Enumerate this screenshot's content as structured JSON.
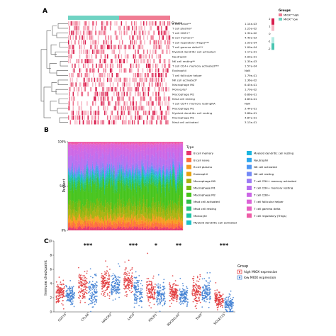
{
  "figure": {
    "panels": [
      {
        "label": "A"
      },
      {
        "label": "B"
      },
      {
        "label": "C"
      }
    ]
  },
  "chart_data": [
    {
      "type": "heatmap",
      "panel": "A",
      "groups_header": "Groups",
      "legend": {
        "title": "Groups",
        "entries": [
          {
            "name": "MIOX^high",
            "color": "#f07c93"
          },
          {
            "name": "MIOX^low",
            "color": "#6fd3c3"
          }
        ],
        "scale_ticks": [
          "2",
          "1",
          "0",
          "-1",
          "-2"
        ],
        "scale_colors": [
          "#d81e4e",
          "#f7b7c5",
          "#ffffff",
          "#b2ebe2",
          "#49c5b1"
        ]
      },
      "annotation_split": 0.5,
      "rows": [
        {
          "name": "B cell naive**",
          "p": "1.14e-03"
        },
        {
          "name": "T cell plasma*",
          "p": "1.25e-02"
        },
        {
          "name": "T cell CD8+*",
          "p": "1.32e-02"
        },
        {
          "name": "B cell memory*",
          "p": "4.45e-03"
        },
        {
          "name": "T cell regulatory (Tregs)***",
          "p": "1.55e-04"
        },
        {
          "name": "T cell gamma delta***",
          "p": "1.00e-04"
        },
        {
          "name": "Myeloid dendritic cell activated",
          "p": "1.17e-01"
        },
        {
          "name": "Neutrophil",
          "p": "3.09e-01"
        },
        {
          "name": "NK cell resting**",
          "p": "1.35e-03"
        },
        {
          "name": "T cell CD4+ memory activated***",
          "p": "1.57e-04"
        },
        {
          "name": "Eosinophil",
          "p": "NaN"
        },
        {
          "name": "T cell follicular helper",
          "p": "1.79e-01"
        },
        {
          "name": "NK cell activated*",
          "p": "1.36e-02"
        },
        {
          "name": "Macrophage M0",
          "p": "6.45e-01"
        },
        {
          "name": "Monocyte*",
          "p": "1.79e-02"
        },
        {
          "name": "Macrophage M2",
          "p": "6.86e-01"
        },
        {
          "name": "Mast cell resting",
          "p": "4.65e-01"
        },
        {
          "name": "T cell CD4+ memory restingNA",
          "p": "NaN"
        },
        {
          "name": "Macrophage M1",
          "p": "3.44e-01"
        },
        {
          "name": "Myeloid dendritic cell resting",
          "p": "3.88e-01"
        },
        {
          "name": "Macrophage M1",
          "p": "4.87e-01"
        },
        {
          "name": "Mast cell activated",
          "p": "3.13e-01"
        }
      ]
    },
    {
      "type": "bar",
      "stacked": true,
      "panel": "B",
      "ylabel": "Percent",
      "yticks": [
        "100%",
        "50%",
        "0%"
      ],
      "legend_title": "Type",
      "samples": 200,
      "series": [
        {
          "name": "B cell memory",
          "color": "#e6366e",
          "mean": 0.03
        },
        {
          "name": "B cell naive",
          "color": "#ff6b3d",
          "mean": 0.05
        },
        {
          "name": "B cell plasma",
          "color": "#f79a1e",
          "mean": 0.05
        },
        {
          "name": "Eosinophil",
          "color": "#e6a10a",
          "mean": 0.01
        },
        {
          "name": "Macrophage M0",
          "color": "#a8b20f",
          "mean": 0.08
        },
        {
          "name": "Macrophage M1",
          "color": "#79b80f",
          "mean": 0.08
        },
        {
          "name": "Macrophage M2",
          "color": "#45c41b",
          "mean": 0.2
        },
        {
          "name": "Mast cell activated",
          "color": "#2fbf4b",
          "mean": 0.02
        },
        {
          "name": "Mast cell resting",
          "color": "#23c27d",
          "mean": 0.05
        },
        {
          "name": "Monocyte",
          "color": "#19c3a3",
          "mean": 0.03
        },
        {
          "name": "Myeloid dendritic cell activated",
          "color": "#1ec1c6",
          "mean": 0.02
        },
        {
          "name": "Myeloid dendritic cell resting",
          "color": "#1bb6e0",
          "mean": 0.01
        },
        {
          "name": "Neutrophil",
          "color": "#2ba7ef",
          "mean": 0.01
        },
        {
          "name": "NK cell activated",
          "color": "#4d96f5",
          "mean": 0.03
        },
        {
          "name": "NK cell resting",
          "color": "#7389f7",
          "mean": 0.02
        },
        {
          "name": "T cell CD4+ memory activated",
          "color": "#9b7af5",
          "mean": 0.02
        },
        {
          "name": "T cell CD4+ memory resting",
          "color": "#b86ef0",
          "mean": 0.12
        },
        {
          "name": "T cell CD8+",
          "color": "#cc66e6",
          "mean": 0.09
        },
        {
          "name": "T cell follicular helper",
          "color": "#dc62d7",
          "mean": 0.05
        },
        {
          "name": "T cell gamma delta",
          "color": "#e75ec1",
          "mean": 0.01
        },
        {
          "name": "T cell regulatory (Tregs)",
          "color": "#ee5ba6",
          "mean": 0.02
        }
      ]
    },
    {
      "type": "scatter",
      "panel": "C",
      "ylabel": "Immune checkpoint",
      "ylim": [
        0,
        10
      ],
      "yticks": [
        0,
        2,
        4,
        6,
        8,
        10
      ],
      "categories": [
        "CD274",
        "CTLA4",
        "HAVCR2",
        "LAG3",
        "PDCD1",
        "PDCD1LG2",
        "TIGIT",
        "SIGLEC15"
      ],
      "significance": [
        "",
        "***",
        "",
        "***",
        "*",
        "**",
        "",
        "***"
      ],
      "legend_title": "Group",
      "series": [
        {
          "name": "high MIOX expression",
          "color": "#e0373a",
          "centers": [
            2.5,
            3.6,
            4.0,
            4.1,
            2.9,
            2.6,
            2.7,
            1.6
          ],
          "spread": [
            1.3,
            1.6,
            1.4,
            1.6,
            1.5,
            1.1,
            1.4,
            1.0
          ]
        },
        {
          "name": "low MIOX expression",
          "color": "#3f7fd2",
          "centers": [
            2.4,
            2.6,
            3.6,
            2.7,
            2.3,
            2.1,
            2.5,
            1.0
          ],
          "spread": [
            1.3,
            1.6,
            1.4,
            1.7,
            1.3,
            1.1,
            1.3,
            0.9
          ]
        }
      ]
    }
  ]
}
